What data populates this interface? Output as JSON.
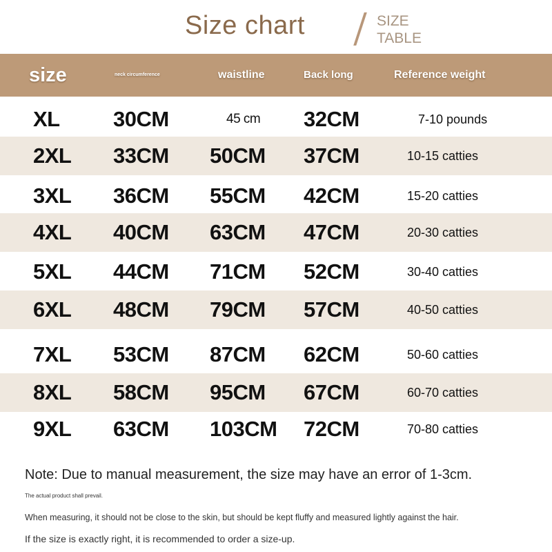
{
  "title": "Size chart",
  "subtitle_line1": "SIZE",
  "subtitle_line2": "TABLE",
  "colors": {
    "header_bg": "#bd9a78",
    "stripe_bg": "#efe8df",
    "title": "#8a6a4c"
  },
  "columns": [
    "size",
    "neck circumference",
    "waistline",
    "Back long",
    "Reference weight"
  ],
  "rows": [
    [
      "XL",
      "30CM",
      "45 cm",
      "32CM",
      "7-10 pounds"
    ],
    [
      "2XL",
      "33CM",
      "50CM",
      "37CM",
      "10-15 catties"
    ],
    [
      "3XL",
      "36CM",
      "55CM",
      "42CM",
      "15-20 catties"
    ],
    [
      "4XL",
      "40CM",
      "63CM",
      "47CM",
      "20-30 catties"
    ],
    [
      "5XL",
      "44CM",
      "71CM",
      "52CM",
      "30-40 catties"
    ],
    [
      "6XL",
      "48CM",
      "79CM",
      "57CM",
      "40-50 catties"
    ],
    [
      "7XL",
      "53CM",
      "87CM",
      "62CM",
      "50-60 catties"
    ],
    [
      "8XL",
      "58CM",
      "95CM",
      "67CM",
      "60-70 catties"
    ],
    [
      "9XL",
      "63CM",
      "103CM",
      "72CM",
      "70-80 catties"
    ]
  ],
  "notes": {
    "main": "Note: Due to manual measurement, the size may have an error of 1-3cm.",
    "prevail": "The actual product shall prevail.",
    "measuring": "When measuring, it should not be close to the skin, but should be kept fluffy and measured lightly against the hair.",
    "sizeup": "If the size is exactly right, it is recommended to order a size-up."
  }
}
